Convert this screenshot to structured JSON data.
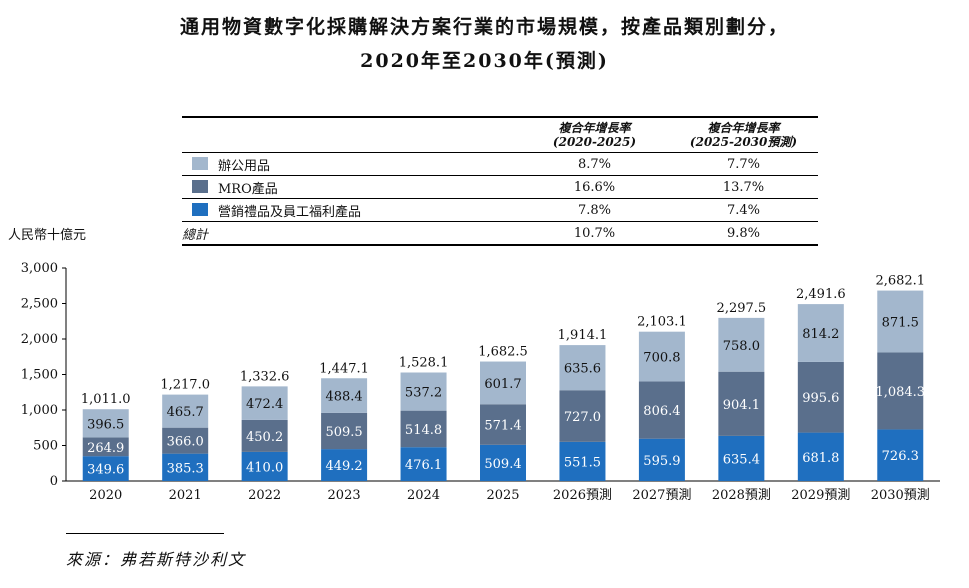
{
  "chart_data": {
    "type": "bar",
    "stacked": true,
    "title": "通用物資數字化採購解決方案行業的市場規模，按產品類別劃分，",
    "subtitle": "2020年至2030年(預測)",
    "ylabel": "人民幣十億元",
    "xlabel": "",
    "ylim": [
      0,
      3000
    ],
    "yticks": [
      "0",
      "500",
      "1,000",
      "1,500",
      "2,000",
      "2,500",
      "3,000"
    ],
    "ytick_values": [
      0,
      500,
      1000,
      1500,
      2000,
      2500,
      3000
    ],
    "categories": [
      "2020",
      "2021",
      "2022",
      "2023",
      "2024",
      "2025",
      "2026預測",
      "2027預測",
      "2028預測",
      "2029預測",
      "2030預測"
    ],
    "series": [
      {
        "name": "營銷禮品及員工福利產品",
        "color": "#1f6fbf",
        "values": [
          349.6,
          385.3,
          410.0,
          449.2,
          476.1,
          509.4,
          551.5,
          595.9,
          635.4,
          681.8,
          726.3
        ],
        "labels": [
          "349.6",
          "385.3",
          "410.0",
          "449.2",
          "476.1",
          "509.4",
          "551.5",
          "595.9",
          "635.4",
          "681.8",
          "726.3"
        ]
      },
      {
        "name": "MRO產品",
        "color": "#5a6f8c",
        "values": [
          264.9,
          366.0,
          450.2,
          509.5,
          514.8,
          571.4,
          727.0,
          806.4,
          904.1,
          995.6,
          1084.3
        ],
        "labels": [
          "264.9",
          "366.0",
          "450.2",
          "509.5",
          "514.8",
          "571.4",
          "727.0",
          "806.4",
          "904.1",
          "995.6",
          "1,084.3"
        ]
      },
      {
        "name": "辦公用品",
        "color": "#a3b7cd",
        "values": [
          396.5,
          465.7,
          472.4,
          488.4,
          537.2,
          601.7,
          635.6,
          700.8,
          758.0,
          814.2,
          871.5
        ],
        "labels": [
          "396.5",
          "465.7",
          "472.4",
          "488.4",
          "537.2",
          "601.7",
          "635.6",
          "700.8",
          "758.0",
          "814.2",
          "871.5"
        ]
      }
    ],
    "totals": [
      "1,011.0",
      "1,217.0",
      "1,332.6",
      "1,447.1",
      "1,528.1",
      "1,682.5",
      "1,914.1",
      "2,103.1",
      "2,297.5",
      "2,491.6",
      "2,682.1"
    ],
    "total_values": [
      1011.0,
      1217.0,
      1332.6,
      1447.1,
      1528.1,
      1682.5,
      1914.1,
      2103.1,
      2297.5,
      2491.6,
      2682.1
    ],
    "legend_placement": "top (table above chart)",
    "grid": false
  },
  "cagr_table": {
    "header_col1": "複合年增長率",
    "header_col1_period": "(2020-2025)",
    "header_col2": "複合年增長率",
    "header_col2_period": "(2025-2030預測)",
    "rows": [
      {
        "label": "辦公用品",
        "color": "#a3b7cd",
        "cagr1": "8.7%",
        "cagr2": "7.7%"
      },
      {
        "label": "MRO產品",
        "color": "#5a6f8c",
        "cagr1": "16.6%",
        "cagr2": "13.7%"
      },
      {
        "label": "營銷禮品及員工福利產品",
        "color": "#1f6fbf",
        "cagr1": "7.8%",
        "cagr2": "7.4%"
      }
    ],
    "total": {
      "label": "總計",
      "cagr1": "10.7%",
      "cagr2": "9.8%"
    }
  },
  "source": "來源：弗若斯特沙利文"
}
